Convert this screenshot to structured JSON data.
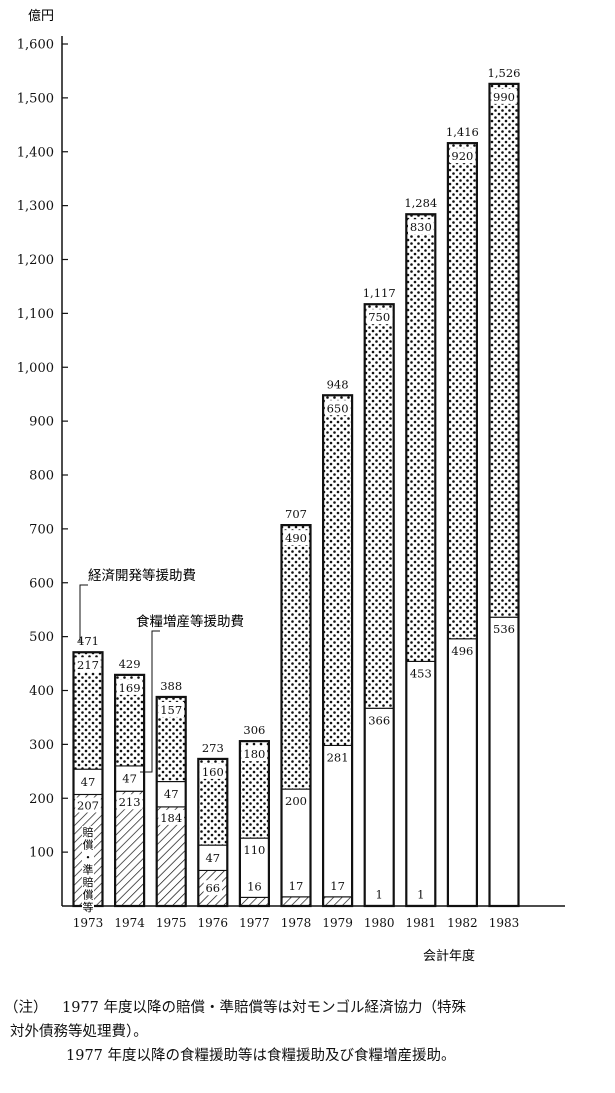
{
  "chart_data": {
    "type": "bar",
    "stacked": true,
    "y_unit": "億円",
    "x_title": "会計年度",
    "ylim": [
      0,
      1600
    ],
    "y_ticks": [
      100,
      200,
      300,
      400,
      500,
      600,
      700,
      800,
      900,
      1000,
      1100,
      1200,
      1300,
      1400,
      1500,
      1600
    ],
    "y_tick_labels": [
      "100",
      "200",
      "300",
      "400",
      "500",
      "600",
      "700",
      "800",
      "900",
      "1,000",
      "1,100",
      "1,200",
      "1,300",
      "1,400",
      "1,500",
      "1,600"
    ],
    "categories": [
      "1973",
      "1974",
      "1975",
      "1976",
      "1977",
      "1978",
      "1979",
      "1980",
      "1981",
      "1982",
      "1983"
    ],
    "series": [
      {
        "pattern": "hatched",
        "values": [
          207,
          213,
          184,
          66,
          16,
          17,
          17,
          1,
          1,
          0,
          0
        ],
        "labels": [
          "207",
          "213",
          "184",
          "66",
          "16",
          "17",
          "17",
          "1",
          "1",
          "",
          ""
        ]
      },
      {
        "pattern": "white",
        "values": [
          47,
          47,
          47,
          47,
          110,
          200,
          281,
          366,
          453,
          496,
          536
        ],
        "labels": [
          "47",
          "47",
          "47",
          "47",
          "110",
          "200",
          "281",
          "366",
          "453",
          "496",
          "536"
        ]
      },
      {
        "pattern": "dotted",
        "values": [
          217,
          169,
          157,
          160,
          180,
          490,
          650,
          750,
          830,
          920,
          990
        ],
        "labels": [
          "217",
          "169",
          "157",
          "160",
          "180",
          "490",
          "650",
          "750",
          "830",
          "920",
          "990"
        ]
      }
    ],
    "totals": [
      471,
      429,
      388,
      273,
      306,
      707,
      948,
      1117,
      1284,
      1416,
      1526
    ],
    "total_labels": [
      "471",
      "429",
      "388",
      "273",
      "306",
      "707",
      "948",
      "1,117",
      "1,284",
      "1,416",
      "1,526"
    ],
    "annotations": {
      "economic": "経済開発等援助費",
      "food": "食糧増産等援助費",
      "reparations_chars": [
        "賠",
        "償",
        "・",
        "準",
        "賠",
        "償",
        "等"
      ]
    }
  },
  "notes": {
    "prefix": "（注）",
    "line1": "1977 年度以降の賠償・準賠償等は対モンゴル経済協力（特殊",
    "line2": "対外債務等処理費）。",
    "line3": "1977 年度以降の食糧援助等は食糧援助及び食糧増産援助。"
  }
}
